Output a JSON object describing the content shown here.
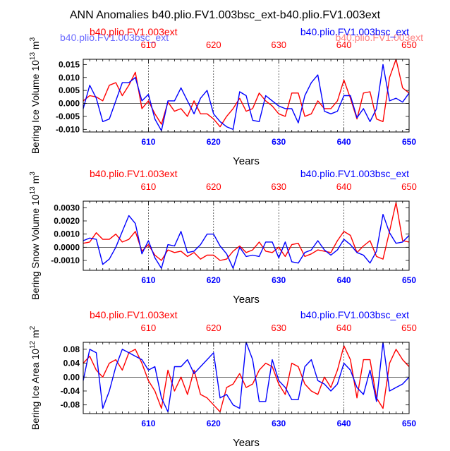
{
  "title": "ANN Anomalies b40.plio.FV1.003bsc_ext-b40.plio.FV1.003ext",
  "colors": {
    "red": "#ff0000",
    "blue": "#0000ff",
    "axis": "#000000"
  },
  "ghost_labels": {
    "left": "b40.plio.FV1.003bsc_ext",
    "right": "b40.plio.FV1.003ext"
  },
  "chart_data": [
    {
      "type": "line",
      "id": "ice-volume",
      "ylabel": "Bering Ice Volume 10",
      "ylabel_exp1": "13",
      "ylabel_unit": " m",
      "ylabel_exp2": "3",
      "xlabel": "Years",
      "left_title": "b40.plio.FV1.003ext",
      "right_title": "b40.plio.FV1.003bsc_ext",
      "xlim": [
        600,
        650
      ],
      "ylim": [
        -0.011,
        0.017
      ],
      "xticks": [
        610,
        620,
        630,
        640,
        650
      ],
      "xtick_labels": [
        "610",
        "620",
        "630",
        "640",
        "650"
      ],
      "yticks": [
        0.015,
        0.01,
        0.005,
        0.0,
        -0.005,
        -0.01
      ],
      "ytick_labels": [
        "0.015",
        "0.010",
        "0.005",
        "0.000",
        "-0.005",
        "-0.010"
      ],
      "series": [
        {
          "name": "b40.plio.FV1.003ext",
          "color": "#ff0000",
          "x": [
            600,
            601,
            602,
            603,
            604,
            605,
            606,
            607,
            608,
            609,
            610,
            611,
            612,
            613,
            614,
            615,
            616,
            617,
            618,
            619,
            620,
            621,
            622,
            623,
            624,
            625,
            626,
            627,
            628,
            629,
            630,
            631,
            632,
            633,
            634,
            635,
            636,
            637,
            638,
            639,
            640,
            641,
            642,
            643,
            644,
            645,
            646,
            647,
            648,
            649,
            650
          ],
          "values": [
            0.001,
            0.003,
            0.0025,
            0.001,
            0.007,
            0.008,
            0.003,
            0.007,
            0.012,
            -0.002,
            0.001,
            -0.004,
            -0.008,
            0.0005,
            -0.003,
            -0.002,
            -0.005,
            0.001,
            -0.004,
            -0.004,
            -0.006,
            -0.009,
            -0.005,
            -0.002,
            0.002,
            -0.003,
            -0.002,
            0.004,
            0.001,
            -0.001,
            -0.004,
            -0.005,
            0.004,
            0.004,
            -0.005,
            -0.004,
            0.001,
            -0.002,
            -0.002,
            0.001,
            0.009,
            0.002,
            -0.006,
            0.004,
            0.0045,
            -0.006,
            -0.007,
            0.01,
            0.017,
            0.006,
            0.004
          ]
        },
        {
          "name": "b40.plio.FV1.003bsc_ext",
          "color": "#0000ff",
          "x": [
            600,
            601,
            602,
            603,
            604,
            605,
            606,
            607,
            608,
            609,
            610,
            611,
            612,
            613,
            614,
            615,
            616,
            617,
            618,
            619,
            620,
            621,
            622,
            623,
            624,
            625,
            626,
            627,
            628,
            629,
            630,
            631,
            632,
            633,
            634,
            635,
            636,
            637,
            638,
            639,
            640,
            641,
            642,
            643,
            644,
            645,
            646,
            647,
            648,
            649,
            650
          ],
          "values": [
            -0.002,
            0.007,
            0.002,
            -0.007,
            -0.006,
            0.001,
            0.008,
            0.008,
            0.01,
            0.001,
            0.0035,
            -0.006,
            -0.0105,
            0.001,
            0.001,
            0.006,
            0.001,
            -0.004,
            0.002,
            0.005,
            -0.004,
            -0.007,
            -0.009,
            -0.01,
            0.0045,
            0.003,
            -0.0065,
            -0.007,
            0.003,
            0.001,
            -0.001,
            -0.002,
            -0.002,
            -0.0075,
            0.003,
            0.008,
            0.011,
            -0.003,
            -0.004,
            -0.003,
            0.003,
            0.003,
            -0.0055,
            -0.002,
            -0.007,
            -0.002,
            0.015,
            0.001,
            0.002,
            0.0005,
            0.004
          ]
        }
      ]
    },
    {
      "type": "line",
      "id": "snow-volume",
      "ylabel": "Bering Snow Volume 10",
      "ylabel_exp1": "13",
      "ylabel_unit": " m",
      "ylabel_exp2": "3",
      "xlabel": "Years",
      "left_title": "b40.plio.FV1.003ext",
      "right_title": "b40.plio.FV1.003bsc_ext",
      "xlim": [
        600,
        650
      ],
      "ylim": [
        -0.00175,
        0.0035
      ],
      "xticks": [
        610,
        620,
        630,
        640,
        650
      ],
      "xtick_labels": [
        "610",
        "620",
        "630",
        "640",
        "650"
      ],
      "yticks": [
        0.003,
        0.002,
        0.001,
        0.0,
        -0.001
      ],
      "ytick_labels": [
        "0.0030",
        "0.0020",
        "0.0010",
        "0.0000",
        "-0.0010"
      ],
      "series": [
        {
          "name": "b40.plio.FV1.003ext",
          "color": "#ff0000",
          "x": [
            600,
            601,
            602,
            603,
            604,
            605,
            606,
            607,
            608,
            609,
            610,
            611,
            612,
            613,
            614,
            615,
            616,
            617,
            618,
            619,
            620,
            621,
            622,
            623,
            624,
            625,
            626,
            627,
            628,
            629,
            630,
            631,
            632,
            633,
            634,
            635,
            636,
            637,
            638,
            639,
            640,
            641,
            642,
            643,
            644,
            645,
            646,
            647,
            648,
            649,
            650
          ],
          "values": [
            0.0003,
            0.0004,
            0.0011,
            0.0006,
            0.0006,
            0.001,
            0.0004,
            0.0006,
            0.0012,
            -0.0003,
            0.0002,
            -0.0006,
            -0.001,
            -0.0002,
            -0.0004,
            -0.0003,
            -0.0007,
            -0.0004,
            -0.0009,
            -0.0006,
            -0.0006,
            -0.001,
            -0.0009,
            -0.0003,
            0.0001,
            -0.0004,
            -0.0002,
            0.0004,
            -0.0003,
            -0.0004,
            0.0,
            -0.0007,
            0.0002,
            0.0003,
            -0.0007,
            -0.0005,
            -0.0002,
            -0.0003,
            -0.0004,
            0.0005,
            0.0012,
            0.0009,
            -0.0004,
            0.0001,
            0.0005,
            -0.0007,
            -0.0009,
            0.0012,
            0.0034,
            0.0005,
            0.0004
          ]
        },
        {
          "name": "b40.plio.FV1.003bsc_ext",
          "color": "#0000ff",
          "x": [
            600,
            601,
            602,
            603,
            604,
            605,
            606,
            607,
            608,
            609,
            610,
            611,
            612,
            613,
            614,
            615,
            616,
            617,
            618,
            619,
            620,
            621,
            622,
            623,
            624,
            625,
            626,
            627,
            628,
            629,
            630,
            631,
            632,
            633,
            634,
            635,
            636,
            637,
            638,
            639,
            640,
            641,
            642,
            643,
            644,
            645,
            646,
            647,
            648,
            649,
            650
          ],
          "values": [
            0.0005,
            0.0007,
            0.0006,
            -0.0013,
            -0.0009,
            0.0,
            0.0012,
            0.0024,
            0.0018,
            -0.0005,
            0.0005,
            -0.0008,
            -0.0016,
            0.0002,
            0.0001,
            0.0012,
            -0.0004,
            -0.0003,
            0.0002,
            0.001,
            0.001,
            0.0001,
            -0.0005,
            -0.0016,
            0.0,
            -0.0007,
            -0.0006,
            -0.0007,
            0.0004,
            0.0004,
            -0.0008,
            0.0004,
            -0.0011,
            -0.0012,
            -0.0004,
            -0.0002,
            0.0005,
            -0.0002,
            -0.0006,
            -0.0002,
            0.0006,
            0.0002,
            -0.0004,
            -0.0006,
            -0.0012,
            -0.0003,
            0.0025,
            0.0011,
            0.0003,
            0.0004,
            0.0009
          ]
        }
      ]
    },
    {
      "type": "line",
      "id": "ice-area",
      "ylabel": "Bering Ice Area 10",
      "ylabel_exp1": "12",
      "ylabel_unit": " m",
      "ylabel_exp2": "2",
      "xlabel": "Years",
      "left_title": "b40.plio.FV1.003ext",
      "right_title": "b40.plio.FV1.003bsc_ext",
      "xlim": [
        600,
        650
      ],
      "ylim": [
        -0.105,
        0.1
      ],
      "xticks": [
        610,
        620,
        630,
        640,
        650
      ],
      "xtick_labels": [
        "610",
        "620",
        "630",
        "640",
        "650"
      ],
      "yticks": [
        0.08,
        0.04,
        0.0,
        -0.04,
        -0.08
      ],
      "ytick_labels": [
        "0.08",
        "0.04",
        "0.00",
        "-0.04",
        "-0.08"
      ],
      "series": [
        {
          "name": "b40.plio.FV1.003ext",
          "color": "#ff0000",
          "x": [
            600,
            601,
            602,
            603,
            604,
            605,
            606,
            607,
            608,
            609,
            610,
            611,
            612,
            613,
            614,
            615,
            616,
            617,
            618,
            619,
            620,
            621,
            622,
            623,
            624,
            625,
            626,
            627,
            628,
            629,
            630,
            631,
            632,
            633,
            634,
            635,
            636,
            637,
            638,
            639,
            640,
            641,
            642,
            643,
            644,
            645,
            646,
            647,
            648,
            649,
            650
          ],
          "values": [
            0.04,
            0.06,
            0.02,
            0.0,
            0.04,
            0.05,
            0.02,
            0.07,
            0.08,
            0.04,
            -0.01,
            -0.04,
            -0.09,
            0.02,
            -0.04,
            0.0,
            -0.05,
            0.02,
            -0.05,
            -0.06,
            -0.08,
            -0.1,
            -0.03,
            -0.02,
            0.01,
            -0.03,
            -0.02,
            0.02,
            0.04,
            0.03,
            -0.02,
            -0.05,
            0.04,
            0.03,
            -0.02,
            -0.04,
            -0.05,
            0.0,
            -0.03,
            0.02,
            0.09,
            0.05,
            -0.06,
            0.05,
            0.05,
            -0.06,
            -0.09,
            0.04,
            0.08,
            0.05,
            0.03
          ]
        },
        {
          "name": "b40.plio.FV1.003bsc_ext",
          "color": "#0000ff",
          "x": [
            600,
            601,
            602,
            603,
            604,
            605,
            606,
            607,
            608,
            609,
            610,
            611,
            612,
            613,
            614,
            615,
            616,
            617,
            618,
            619,
            620,
            621,
            622,
            623,
            624,
            625,
            626,
            627,
            628,
            629,
            630,
            631,
            632,
            633,
            634,
            635,
            636,
            637,
            638,
            639,
            640,
            641,
            642,
            643,
            644,
            645,
            646,
            647,
            648,
            649,
            650
          ],
          "values": [
            -0.01,
            0.08,
            0.07,
            -0.09,
            -0.04,
            0.03,
            0.08,
            0.07,
            0.06,
            0.05,
            0.02,
            0.03,
            -0.06,
            -0.1,
            0.03,
            0.03,
            0.05,
            0.01,
            0.03,
            0.05,
            0.07,
            -0.06,
            -0.05,
            -0.08,
            -0.09,
            0.1,
            0.05,
            -0.07,
            -0.07,
            0.05,
            -0.01,
            -0.03,
            -0.065,
            -0.065,
            0.03,
            0.05,
            -0.01,
            -0.02,
            -0.04,
            -0.02,
            0.04,
            0.02,
            -0.03,
            -0.05,
            0.02,
            -0.07,
            0.1,
            -0.04,
            -0.03,
            -0.02,
            0.0
          ]
        }
      ]
    }
  ]
}
